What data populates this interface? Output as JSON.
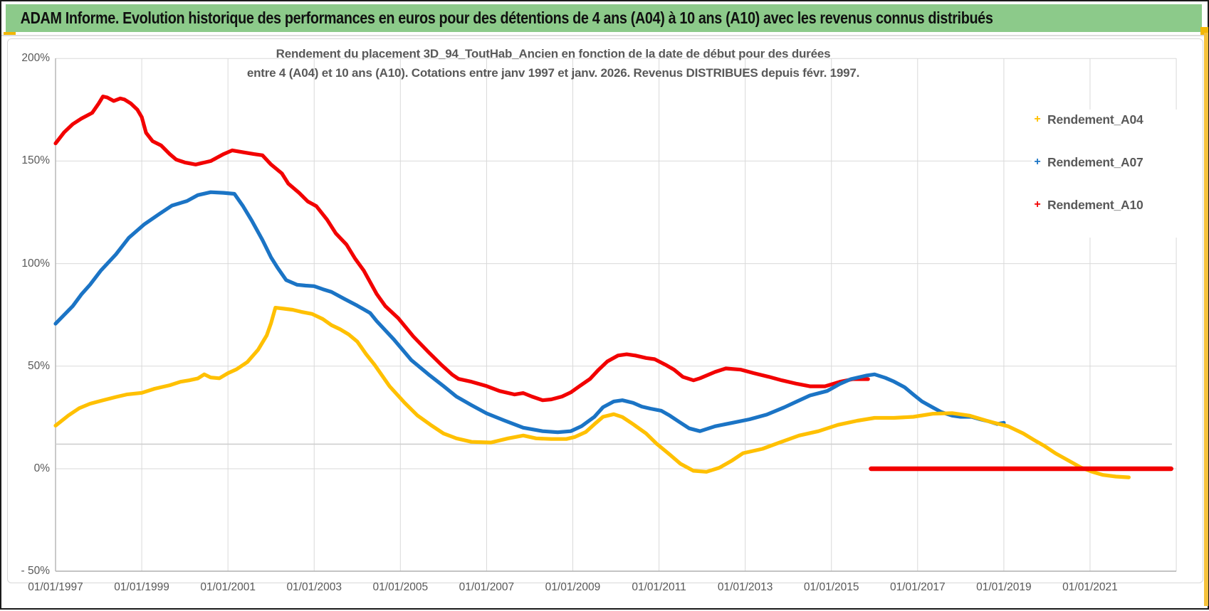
{
  "window": {
    "header_title": "ADAM Informe. Evolution historique des performances en euros pour des détentions de 4 ans (A04) à 10 ans (A10) avec les revenus connus distribués"
  },
  "chart_data": {
    "type": "scatter",
    "title_line1": "Rendement du placement 3D_94_ToutHab_Ancien en fonction de la date de début pour des durées",
    "title_line2": "entre 4 (A04) et 10 ans (A10). Cotations entre janv 1997 et janv. 2026. Revenus DISTRIBUES depuis févr. 1997.",
    "legend_position": "right",
    "legend_marker_glyph": "+",
    "grid": "on",
    "x_axis": {
      "base_year": 1997,
      "grid_end_year": 2023,
      "tick_step_years": 2,
      "tick_years": [
        1997,
        1999,
        2001,
        2003,
        2005,
        2007,
        2009,
        2011,
        2013,
        2015,
        2017,
        2019,
        2021
      ],
      "tick_labels": [
        "01/01/1997",
        "01/01/1999",
        "01/01/2001",
        "01/01/2003",
        "01/01/2005",
        "01/01/2007",
        "01/01/2009",
        "01/01/2011",
        "01/01/2013",
        "01/01/2015",
        "01/01/2017",
        "01/01/2019",
        "01/01/2021"
      ]
    },
    "y_axis": {
      "unit": "%",
      "min": -50,
      "max": 200,
      "ticks": [
        {
          "label": "200%",
          "value": 200
        },
        {
          "label": "150%",
          "value": 150
        },
        {
          "label": "100%",
          "value": 100
        },
        {
          "label": "50%",
          "value": 50
        },
        {
          "label": "0%",
          "value": 0
        },
        {
          "label": "- 50%",
          "value": -50
        }
      ]
    },
    "reference_line": {
      "value": 12,
      "from_year": 1997,
      "to_year": 2022.9,
      "color": "#cfcfcf"
    },
    "series": [
      {
        "name": "Rendement_A04",
        "color": "#FFC000",
        "points": [
          [
            1997.0,
            21
          ],
          [
            1997.3,
            26
          ],
          [
            1997.55,
            29.5
          ],
          [
            1997.8,
            31.7
          ],
          [
            1998.1,
            33.4
          ],
          [
            1998.4,
            35
          ],
          [
            1998.65,
            36.2
          ],
          [
            1999.0,
            37
          ],
          [
            1999.3,
            39
          ],
          [
            1999.65,
            40.7
          ],
          [
            1999.9,
            42.4
          ],
          [
            2000.1,
            43.1
          ],
          [
            2000.3,
            44
          ],
          [
            2000.45,
            46
          ],
          [
            2000.6,
            44.5
          ],
          [
            2000.8,
            44.1
          ],
          [
            2001.0,
            46.6
          ],
          [
            2001.2,
            48.5
          ],
          [
            2001.45,
            52
          ],
          [
            2001.7,
            58
          ],
          [
            2001.9,
            65
          ],
          [
            2002.0,
            71
          ],
          [
            2002.1,
            78.5
          ],
          [
            2002.3,
            78
          ],
          [
            2002.5,
            77.5
          ],
          [
            2002.7,
            76.5
          ],
          [
            2002.95,
            75.5
          ],
          [
            2003.2,
            73
          ],
          [
            2003.4,
            70
          ],
          [
            2003.6,
            68
          ],
          [
            2003.8,
            65.5
          ],
          [
            2004.0,
            62
          ],
          [
            2004.2,
            56
          ],
          [
            2004.4,
            50.7
          ],
          [
            2004.75,
            40.2
          ],
          [
            2005.1,
            32.1
          ],
          [
            2005.4,
            25.9
          ],
          [
            2005.7,
            21.4
          ],
          [
            2006.0,
            17.2
          ],
          [
            2006.3,
            14.8
          ],
          [
            2006.65,
            13.1
          ],
          [
            2007.1,
            12.8
          ],
          [
            2007.5,
            14.8
          ],
          [
            2007.85,
            16.2
          ],
          [
            2008.15,
            14.8
          ],
          [
            2008.5,
            14.5
          ],
          [
            2008.85,
            14.5
          ],
          [
            2009.05,
            15.5
          ],
          [
            2009.3,
            17.9
          ],
          [
            2009.5,
            21.7
          ],
          [
            2009.7,
            25.3
          ],
          [
            2009.95,
            26.6
          ],
          [
            2010.15,
            25.2
          ],
          [
            2010.4,
            21.7
          ],
          [
            2010.7,
            17.2
          ],
          [
            2010.95,
            12.1
          ],
          [
            2011.25,
            6.9
          ],
          [
            2011.5,
            2.4
          ],
          [
            2011.8,
            -1
          ],
          [
            2012.1,
            -1.5
          ],
          [
            2012.4,
            0.5
          ],
          [
            2012.7,
            4.1
          ],
          [
            2012.95,
            7.6
          ],
          [
            2013.4,
            9.7
          ],
          [
            2013.8,
            12.8
          ],
          [
            2014.25,
            16.2
          ],
          [
            2014.7,
            18.3
          ],
          [
            2015.15,
            21.4
          ],
          [
            2015.6,
            23.4
          ],
          [
            2016.0,
            24.8
          ],
          [
            2016.45,
            24.8
          ],
          [
            2016.9,
            25.3
          ],
          [
            2017.35,
            26.8
          ],
          [
            2017.8,
            27.1
          ],
          [
            2018.2,
            25.9
          ],
          [
            2018.65,
            23.1
          ],
          [
            2019.1,
            20.7
          ],
          [
            2019.45,
            17.2
          ],
          [
            2019.7,
            14
          ],
          [
            2019.95,
            11
          ],
          [
            2020.2,
            7.5
          ],
          [
            2020.5,
            4
          ],
          [
            2020.8,
            0.5
          ],
          [
            2021.05,
            -1.5
          ],
          [
            2021.3,
            -3
          ],
          [
            2021.6,
            -3.8
          ],
          [
            2021.9,
            -4.2
          ]
        ]
      },
      {
        "name": "Rendement_A07",
        "color": "#1B74C5",
        "points": [
          [
            1997.0,
            70.7
          ],
          [
            1997.2,
            75
          ],
          [
            1997.4,
            79.3
          ],
          [
            1997.6,
            85
          ],
          [
            1997.8,
            89.7
          ],
          [
            1998.05,
            96.6
          ],
          [
            1998.4,
            104.5
          ],
          [
            1998.7,
            112.6
          ],
          [
            1999.05,
            119
          ],
          [
            1999.4,
            124.1
          ],
          [
            1999.7,
            128.3
          ],
          [
            2000.05,
            130.5
          ],
          [
            2000.3,
            133.4
          ],
          [
            2000.6,
            134.8
          ],
          [
            2000.9,
            134.5
          ],
          [
            2001.15,
            134
          ],
          [
            2001.35,
            128
          ],
          [
            2001.55,
            121
          ],
          [
            2001.8,
            111.5
          ],
          [
            2002.0,
            103
          ],
          [
            2002.15,
            98
          ],
          [
            2002.35,
            92
          ],
          [
            2002.6,
            89.7
          ],
          [
            2002.8,
            89.3
          ],
          [
            2003.0,
            89
          ],
          [
            2003.2,
            87.5
          ],
          [
            2003.4,
            86.2
          ],
          [
            2003.7,
            82.8
          ],
          [
            2004.0,
            79.5
          ],
          [
            2004.3,
            75.9
          ],
          [
            2004.45,
            72
          ],
          [
            2004.85,
            63
          ],
          [
            2005.25,
            53
          ],
          [
            2005.65,
            46
          ],
          [
            2006.0,
            40.3
          ],
          [
            2006.3,
            35.2
          ],
          [
            2006.65,
            31
          ],
          [
            2007.0,
            27
          ],
          [
            2007.4,
            23.6
          ],
          [
            2007.85,
            20
          ],
          [
            2008.3,
            18.3
          ],
          [
            2008.65,
            17.8
          ],
          [
            2008.95,
            18.3
          ],
          [
            2009.2,
            20.7
          ],
          [
            2009.5,
            25.3
          ],
          [
            2009.7,
            30
          ],
          [
            2009.95,
            32.8
          ],
          [
            2010.15,
            33.4
          ],
          [
            2010.4,
            32.1
          ],
          [
            2010.6,
            30.3
          ],
          [
            2010.8,
            29.3
          ],
          [
            2011.05,
            28.3
          ],
          [
            2011.25,
            25.9
          ],
          [
            2011.45,
            23.1
          ],
          [
            2011.7,
            19.7
          ],
          [
            2011.95,
            18.3
          ],
          [
            2012.3,
            20.7
          ],
          [
            2012.7,
            22.4
          ],
          [
            2013.1,
            24.1
          ],
          [
            2013.5,
            26.4
          ],
          [
            2013.9,
            29.9
          ],
          [
            2014.2,
            32.8
          ],
          [
            2014.5,
            35.7
          ],
          [
            2014.9,
            37.9
          ],
          [
            2015.2,
            41.4
          ],
          [
            2015.45,
            43.7
          ],
          [
            2015.8,
            45.4
          ],
          [
            2016.0,
            46
          ],
          [
            2016.25,
            44.3
          ],
          [
            2016.45,
            42.5
          ],
          [
            2016.7,
            39.7
          ],
          [
            2016.9,
            36.2
          ],
          [
            2017.1,
            32.8
          ],
          [
            2017.35,
            29.9
          ],
          [
            2017.55,
            27.6
          ],
          [
            2017.8,
            25.9
          ],
          [
            2018.0,
            25.3
          ],
          [
            2018.25,
            25.3
          ],
          [
            2018.45,
            24.1
          ],
          [
            2018.65,
            23.1
          ],
          [
            2018.85,
            21.8
          ],
          [
            2019.0,
            22.4
          ]
        ]
      },
      {
        "name": "Rendement_A10",
        "color": "#F20000",
        "points": [
          [
            1997.0,
            158.6
          ],
          [
            1997.2,
            164
          ],
          [
            1997.4,
            168
          ],
          [
            1997.6,
            170.7
          ],
          [
            1997.85,
            173.5
          ],
          [
            1998.0,
            178
          ],
          [
            1998.1,
            181.5
          ],
          [
            1998.2,
            181
          ],
          [
            1998.35,
            179.3
          ],
          [
            1998.5,
            180.5
          ],
          [
            1998.6,
            180
          ],
          [
            1998.75,
            178
          ],
          [
            1998.9,
            175
          ],
          [
            1999.0,
            171.4
          ],
          [
            1999.1,
            163.8
          ],
          [
            1999.25,
            159.7
          ],
          [
            1999.45,
            157.6
          ],
          [
            1999.65,
            153.4
          ],
          [
            1999.8,
            150.7
          ],
          [
            2000.0,
            149.3
          ],
          [
            2000.25,
            148.3
          ],
          [
            2000.6,
            150
          ],
          [
            2000.9,
            153.4
          ],
          [
            2001.1,
            155.2
          ],
          [
            2001.4,
            154.1
          ],
          [
            2001.6,
            153.4
          ],
          [
            2001.8,
            152.8
          ],
          [
            2002.0,
            148.3
          ],
          [
            2002.25,
            144
          ],
          [
            2002.4,
            139
          ],
          [
            2002.65,
            134.5
          ],
          [
            2002.85,
            130.3
          ],
          [
            2003.05,
            128
          ],
          [
            2003.3,
            121.4
          ],
          [
            2003.5,
            114.8
          ],
          [
            2003.75,
            109.3
          ],
          [
            2003.95,
            102.4
          ],
          [
            2004.15,
            96.6
          ],
          [
            2004.45,
            85.2
          ],
          [
            2004.65,
            79.3
          ],
          [
            2004.95,
            73.4
          ],
          [
            2005.3,
            64.5
          ],
          [
            2005.65,
            56.9
          ],
          [
            2005.95,
            50.7
          ],
          [
            2006.2,
            45.9
          ],
          [
            2006.35,
            43.8
          ],
          [
            2006.65,
            42.4
          ],
          [
            2007.0,
            40.3
          ],
          [
            2007.3,
            37.9
          ],
          [
            2007.65,
            36.2
          ],
          [
            2007.85,
            36.9
          ],
          [
            2008.05,
            35.2
          ],
          [
            2008.3,
            33.4
          ],
          [
            2008.5,
            33.8
          ],
          [
            2008.75,
            35.2
          ],
          [
            2008.95,
            37.2
          ],
          [
            2009.15,
            40.2
          ],
          [
            2009.4,
            43.8
          ],
          [
            2009.6,
            48.3
          ],
          [
            2009.8,
            52.3
          ],
          [
            2010.05,
            55.2
          ],
          [
            2010.25,
            55.8
          ],
          [
            2010.45,
            55.2
          ],
          [
            2010.7,
            54
          ],
          [
            2010.9,
            53.4
          ],
          [
            2011.15,
            50.7
          ],
          [
            2011.35,
            48.3
          ],
          [
            2011.55,
            44.8
          ],
          [
            2011.8,
            43.1
          ],
          [
            2011.95,
            44.1
          ],
          [
            2012.3,
            47.2
          ],
          [
            2012.55,
            48.9
          ],
          [
            2012.9,
            48.3
          ],
          [
            2013.2,
            46.6
          ],
          [
            2013.55,
            44.8
          ],
          [
            2013.85,
            43.1
          ],
          [
            2014.2,
            41.4
          ],
          [
            2014.5,
            40.2
          ],
          [
            2014.85,
            40.2
          ],
          [
            2015.2,
            42.4
          ],
          [
            2015.5,
            43.7
          ],
          [
            2015.85,
            43.7
          ]
        ],
        "flat_zero_segment": {
          "from_year": 2015.92,
          "to_year": 2022.88,
          "value": 0
        }
      }
    ]
  }
}
